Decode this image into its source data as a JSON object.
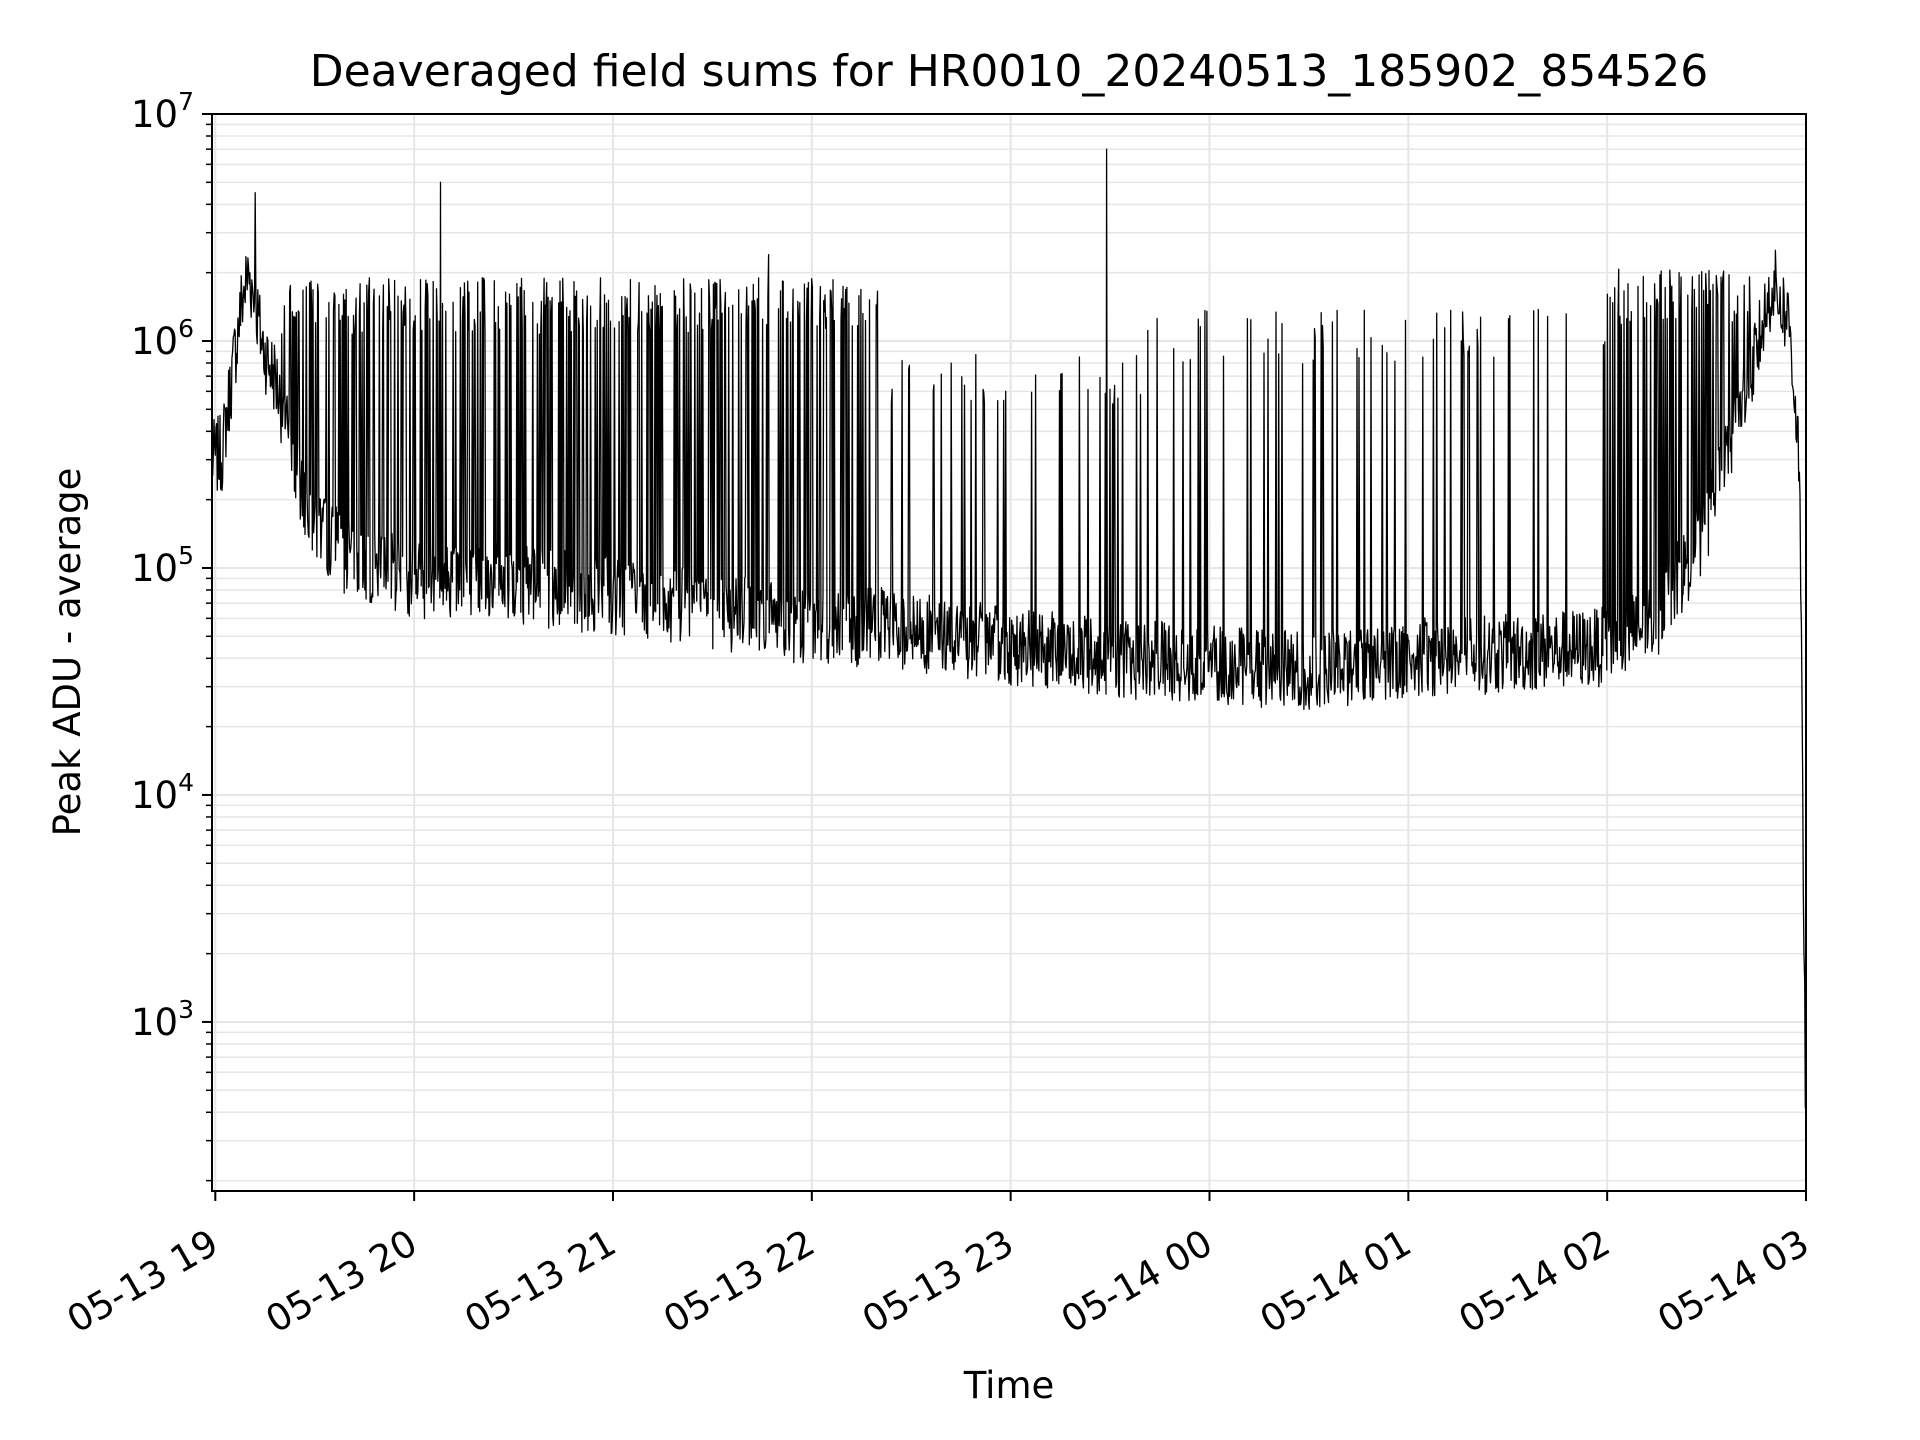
{
  "chart_data": {
    "type": "line",
    "title": "Deaveraged field sums for HR0010_20240513_185902_854526",
    "xlabel": "Time",
    "ylabel": "Peak ADU - average",
    "yscale": "log",
    "ylim": [
      180,
      10000000
    ],
    "xlim": [
      "2024-05-13 18:59",
      "2024-05-14 03:00"
    ],
    "grid": true,
    "line_color": "#000000",
    "grid_color": "#e6e6e6",
    "x_ticks": [
      {
        "value": "2024-05-13 19:00",
        "label": "05-13 19"
      },
      {
        "value": "2024-05-13 20:00",
        "label": "05-13 20"
      },
      {
        "value": "2024-05-13 21:00",
        "label": "05-13 21"
      },
      {
        "value": "2024-05-13 22:00",
        "label": "05-13 22"
      },
      {
        "value": "2024-05-13 23:00",
        "label": "05-13 23"
      },
      {
        "value": "2024-05-14 00:00",
        "label": "05-14 00"
      },
      {
        "value": "2024-05-14 01:00",
        "label": "05-14 01"
      },
      {
        "value": "2024-05-14 02:00",
        "label": "05-14 02"
      },
      {
        "value": "2024-05-14 03:00",
        "label": "05-14 03"
      }
    ],
    "y_ticks": [
      {
        "value": 1000,
        "base": "10",
        "exp": "3"
      },
      {
        "value": 10000,
        "base": "10",
        "exp": "4"
      },
      {
        "value": 100000,
        "base": "10",
        "exp": "5"
      },
      {
        "value": 1000000,
        "base": "10",
        "exp": "6"
      },
      {
        "value": 10000000,
        "base": "10",
        "exp": "7"
      }
    ],
    "series": [
      {
        "x": [
          "2024-05-13 18:59",
          "2024-05-13 19:02",
          "2024-05-13 19:05",
          "2024-05-13 19:08",
          "2024-05-13 19:10",
          "2024-05-13 19:12",
          "2024-05-13 19:14",
          "2024-05-13 19:16",
          "2024-05-13 19:18",
          "2024-05-13 19:21",
          "2024-05-13 19:25",
          "2024-05-13 19:30",
          "2024-05-13 19:40",
          "2024-05-13 20:00",
          "2024-05-13 20:30",
          "2024-05-13 21:00",
          "2024-05-13 21:30",
          "2024-05-13 22:00",
          "2024-05-13 22:20",
          "2024-05-13 22:40",
          "2024-05-13 23:00",
          "2024-05-13 23:30",
          "2024-05-14 00:00",
          "2024-05-14 00:30",
          "2024-05-14 01:00",
          "2024-05-14 01:30",
          "2024-05-14 02:00",
          "2024-05-14 02:15",
          "2024-05-14 02:30",
          "2024-05-14 02:40",
          "2024-05-14 02:45",
          "2024-05-14 02:50",
          "2024-05-14 02:55",
          "2024-05-14 02:58",
          "2024-05-14 03:00"
        ],
        "baseline": [
          300000,
          320000,
          700000,
          1500000,
          2000000,
          1500000,
          1000000,
          800000,
          700000,
          450000,
          250000,
          160000,
          110000,
          90000,
          85000,
          75000,
          65000,
          55000,
          55000,
          50000,
          45000,
          40000,
          38000,
          35000,
          40000,
          42000,
          45000,
          60000,
          150000,
          500000,
          900000,
          1800000,
          1200000,
          300000,
          300
        ]
      }
    ],
    "spikes": [
      {
        "x": "2024-05-13 19:12",
        "y": 4500000
      },
      {
        "x": "2024-05-13 20:08",
        "y": 5000000
      },
      {
        "x": "2024-05-13 21:47",
        "y": 2400000
      },
      {
        "x": "2024-05-13 23:29",
        "y": 7000000
      }
    ],
    "spike_bands": [
      {
        "start": "2024-05-13 19:20",
        "end": "2024-05-13 22:20",
        "peak": 1900000
      },
      {
        "start": "2024-05-13 22:20",
        "end": "2024-05-13 23:40",
        "peak": 900000
      },
      {
        "start": "2024-05-13 23:40",
        "end": "2024-05-14 02:00",
        "peak": 1400000
      },
      {
        "start": "2024-05-14 02:00",
        "end": "2024-05-14 02:45",
        "peak": 2100000
      }
    ]
  }
}
